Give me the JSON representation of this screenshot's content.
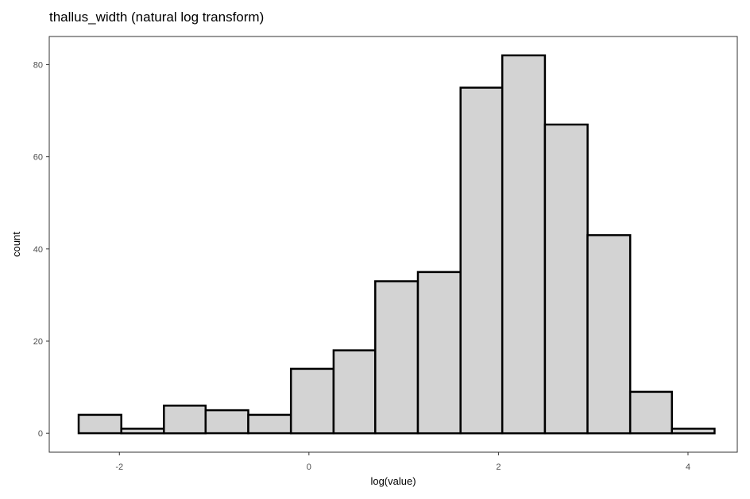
{
  "chart_data": {
    "type": "bar",
    "title": "thallus_width (natural log transform)",
    "xlabel": "log(value)",
    "ylabel": "count",
    "xlim": [
      -2.74,
      4.52
    ],
    "ylim": [
      -4.1,
      86.1
    ],
    "x_ticks": [
      -2,
      0,
      2,
      4
    ],
    "x_tick_labels": [
      "-2",
      "0",
      "2",
      "4"
    ],
    "y_ticks": [
      0,
      20,
      40,
      60,
      80
    ],
    "y_tick_labels": [
      "0",
      "20",
      "40",
      "60",
      "80"
    ],
    "grid": false,
    "legend": "none",
    "bins": [
      {
        "x0": -2.43,
        "x1": -1.98,
        "count": 4
      },
      {
        "x0": -1.98,
        "x1": -1.53,
        "count": 1
      },
      {
        "x0": -1.53,
        "x1": -1.09,
        "count": 6
      },
      {
        "x0": -1.09,
        "x1": -0.64,
        "count": 5
      },
      {
        "x0": -0.64,
        "x1": -0.19,
        "count": 4
      },
      {
        "x0": -0.19,
        "x1": 0.26,
        "count": 14
      },
      {
        "x0": 0.26,
        "x1": 0.7,
        "count": 18
      },
      {
        "x0": 0.7,
        "x1": 1.15,
        "count": 33
      },
      {
        "x0": 1.15,
        "x1": 1.6,
        "count": 35
      },
      {
        "x0": 1.6,
        "x1": 2.04,
        "count": 75
      },
      {
        "x0": 2.04,
        "x1": 2.49,
        "count": 82
      },
      {
        "x0": 2.49,
        "x1": 2.94,
        "count": 67
      },
      {
        "x0": 2.94,
        "x1": 3.39,
        "count": 43
      },
      {
        "x0": 3.39,
        "x1": 3.83,
        "count": 9
      },
      {
        "x0": 3.83,
        "x1": 4.28,
        "count": 1
      }
    ],
    "colors": {
      "bar_fill": "#d3d3d3",
      "bar_outline": "#000000",
      "panel_border": "#333333",
      "background": "#ffffff"
    }
  }
}
